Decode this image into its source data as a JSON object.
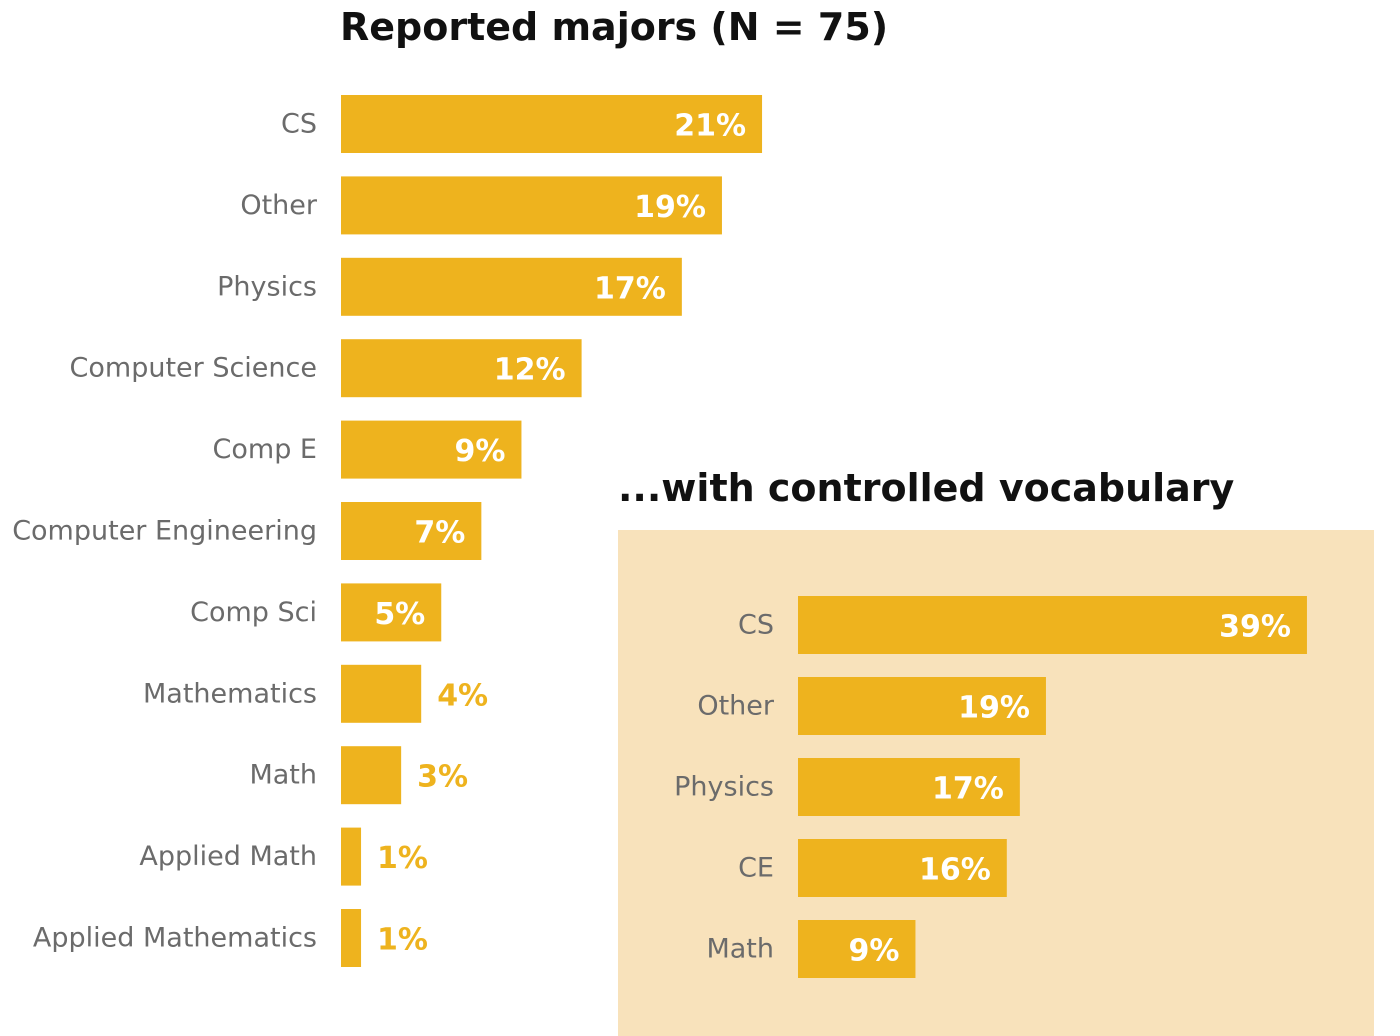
{
  "colors": {
    "bar": "#EEB31E",
    "panel": "#F8E2BB",
    "label_inside": "#ffffff",
    "label_outside": "#EEB31E",
    "category_text": "#6b6b6b",
    "title_text": "#111111"
  },
  "chart_data": [
    {
      "type": "bar",
      "orientation": "horizontal",
      "title": "Reported majors (N = 75)",
      "categories": [
        "CS",
        "Other",
        "Physics",
        "Computer Science",
        "Comp E",
        "Computer Engineering",
        "Comp Sci",
        "Mathematics",
        "Math",
        "Applied Math",
        "Applied Mathematics"
      ],
      "values": [
        21,
        19,
        17,
        12,
        9,
        7,
        5,
        4,
        3,
        1,
        1
      ],
      "value_labels": [
        "21%",
        "19%",
        "17%",
        "12%",
        "9%",
        "7%",
        "5%",
        "4%",
        "3%",
        "1%",
        "1%"
      ],
      "unit": "%",
      "xlabel": "",
      "ylabel": "",
      "grid": false,
      "legend": "none"
    },
    {
      "type": "bar",
      "orientation": "horizontal",
      "title": "...with controlled vocabulary",
      "categories": [
        "CS",
        "Other",
        "Physics",
        "CE",
        "Math"
      ],
      "values": [
        39,
        19,
        17,
        16,
        9
      ],
      "value_labels": [
        "39%",
        "19%",
        "17%",
        "16%",
        "9%"
      ],
      "unit": "%",
      "xlabel": "",
      "ylabel": "",
      "grid": false,
      "legend": "none"
    }
  ]
}
